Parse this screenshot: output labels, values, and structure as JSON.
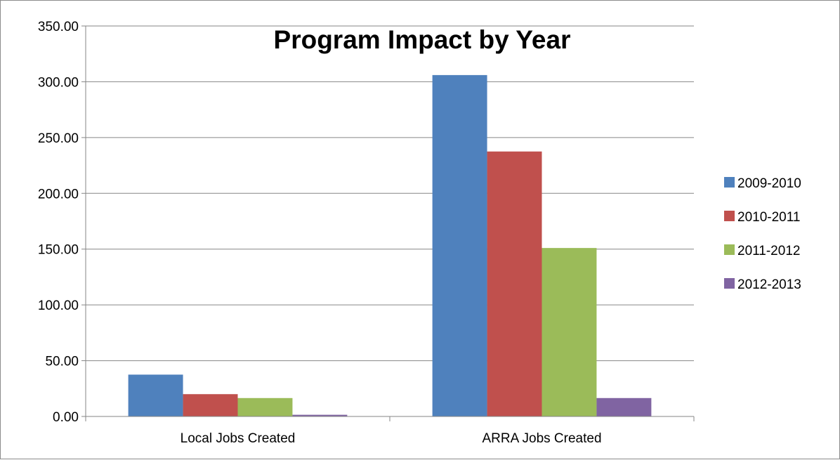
{
  "chart_data": {
    "type": "bar",
    "title": "Program Impact by Year",
    "categories": [
      "Local Jobs Created",
      "ARRA Jobs Created"
    ],
    "series": [
      {
        "name": "2009-2010",
        "color": "#4F81BD",
        "values": [
          37.5,
          306.0
        ]
      },
      {
        "name": "2010-2011",
        "color": "#C0504D",
        "values": [
          20.0,
          237.5
        ]
      },
      {
        "name": "2011-2012",
        "color": "#9BBB59",
        "values": [
          16.5,
          151.0
        ]
      },
      {
        "name": "2012-2013",
        "color": "#8064A2",
        "values": [
          1.5,
          16.5
        ]
      }
    ],
    "yticks": [
      "0.00",
      "50.00",
      "100.00",
      "150.00",
      "200.00",
      "250.00",
      "300.00",
      "350.00"
    ],
    "ylim": [
      0,
      350
    ],
    "grid": true,
    "legend_position": "right"
  }
}
